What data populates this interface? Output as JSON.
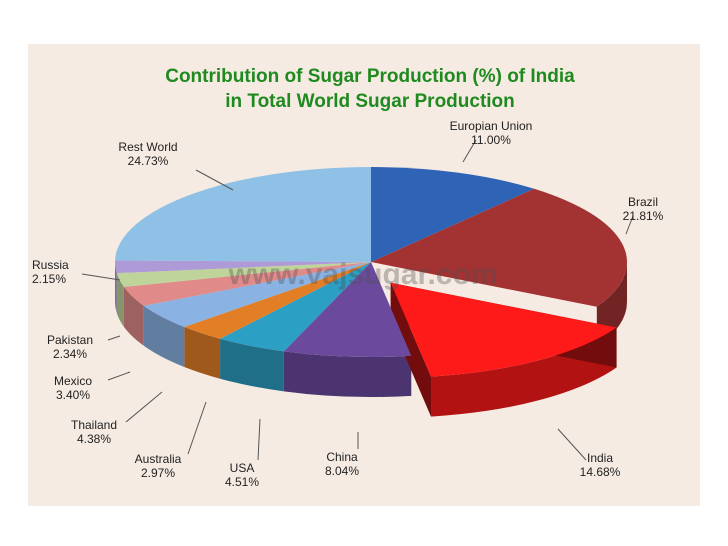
{
  "chart_data": {
    "type": "pie",
    "title_line1": "Contribution of Sugar Production (%) of India",
    "title_line2": "in Total World Sugar Production",
    "watermark": "www.vajsugar.com",
    "unit": "%",
    "slices": [
      {
        "label": "Europian Union",
        "value": 11.0,
        "display": "11.00%",
        "color": "#2f63b6"
      },
      {
        "label": "Brazil",
        "value": 21.81,
        "display": "21.81%",
        "color": "#a33333"
      },
      {
        "label": "India",
        "value": 14.68,
        "display": "14.68%",
        "color": "#ff1a1a",
        "exploded": true
      },
      {
        "label": "China",
        "value": 8.04,
        "display": "8.04%",
        "color": "#6b4a9e"
      },
      {
        "label": "USA",
        "value": 4.51,
        "display": "4.51%",
        "color": "#2c9fc4"
      },
      {
        "label": "Australia",
        "value": 2.97,
        "display": "2.97%",
        "color": "#e27f26"
      },
      {
        "label": "Thailand",
        "value": 4.38,
        "display": "4.38%",
        "color": "#8ab2e3"
      },
      {
        "label": "Mexico",
        "value": 3.4,
        "display": "3.40%",
        "color": "#e08a8a"
      },
      {
        "label": "Pakistan",
        "value": 2.34,
        "display": "2.34%",
        "color": "#bfd49a"
      },
      {
        "label": "Russia",
        "value": 2.15,
        "display": "2.15%",
        "color": "#ae9ad6"
      },
      {
        "label": "Rest World",
        "value": 24.73,
        "display": "24.73%",
        "color": "#8fc1e6"
      }
    ],
    "title_color": "#1f8a1f",
    "highlight_label_color": "#d01818"
  }
}
